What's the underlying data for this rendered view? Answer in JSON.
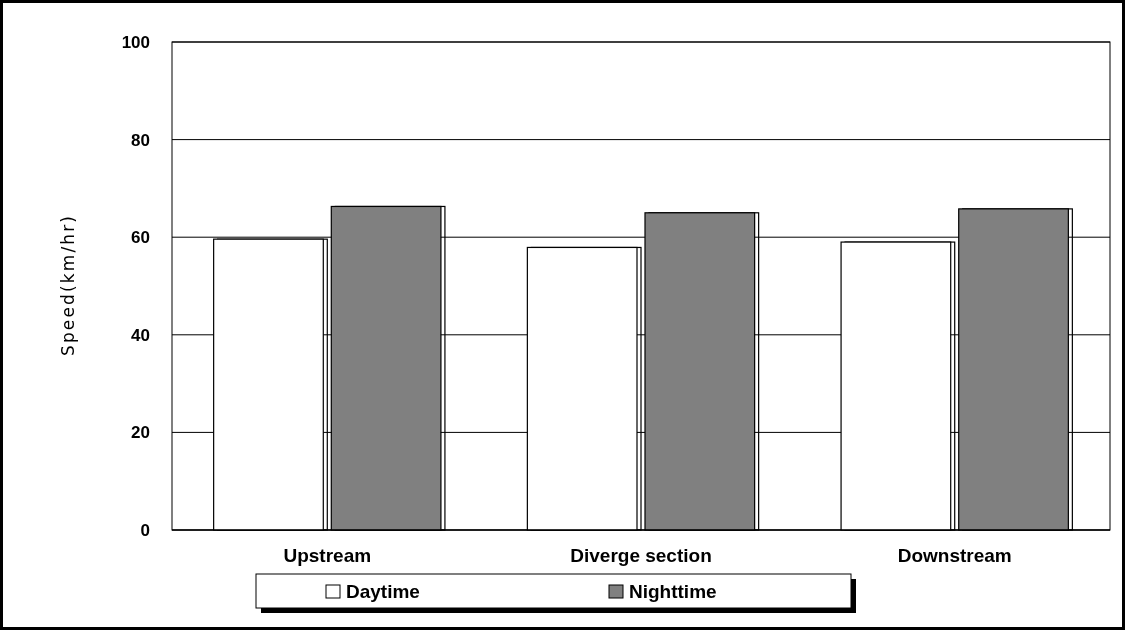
{
  "chart_data": {
    "type": "bar",
    "ylabel": "Speed(km/hr)",
    "categories": [
      "Upstream",
      "Diverge section",
      "Downstream"
    ],
    "series": [
      {
        "name": "Daytime",
        "color": "#ffffff",
        "values": [
          59.6,
          57.9,
          59
        ]
      },
      {
        "name": "Nighttime",
        "color": "#808080",
        "values": [
          66.3,
          65,
          65.8
        ]
      }
    ],
    "ylim": [
      0,
      100
    ],
    "yticks": [
      0,
      20,
      40,
      60,
      80,
      100
    ],
    "grid": "y",
    "legend": "bottom"
  }
}
